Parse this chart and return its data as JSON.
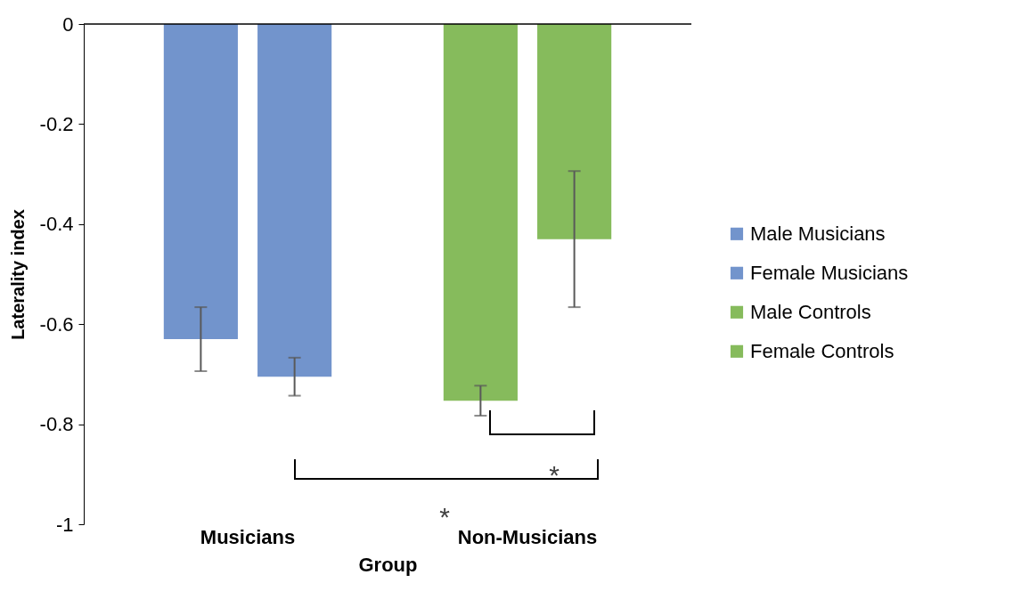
{
  "chart_data": {
    "type": "bar",
    "xlabel": "Group",
    "ylabel": "Laterality index",
    "categories": [
      "Musicians",
      "Non-Musicians"
    ],
    "series": [
      {
        "name": "Male Musicians",
        "color": "#7294cc",
        "values": [
          -0.63,
          null
        ],
        "errors": [
          0.064,
          null
        ]
      },
      {
        "name": "Female Musicians",
        "color": "#7294cc",
        "values": [
          -0.705,
          null
        ],
        "errors": [
          0.038,
          null
        ]
      },
      {
        "name": "Male Controls",
        "color": "#86bb5c",
        "values": [
          null,
          -0.753
        ],
        "errors": [
          null,
          0.03
        ]
      },
      {
        "name": "Female Controls",
        "color": "#86bb5c",
        "values": [
          null,
          -0.43
        ],
        "errors": [
          null,
          0.136
        ]
      }
    ],
    "ylim": [
      -1,
      0
    ],
    "yticks": [
      0,
      -0.2,
      -0.4,
      -0.6,
      -0.8,
      -1
    ],
    "legend": "right",
    "grid": false,
    "annotations": [
      "*",
      "*"
    ]
  }
}
